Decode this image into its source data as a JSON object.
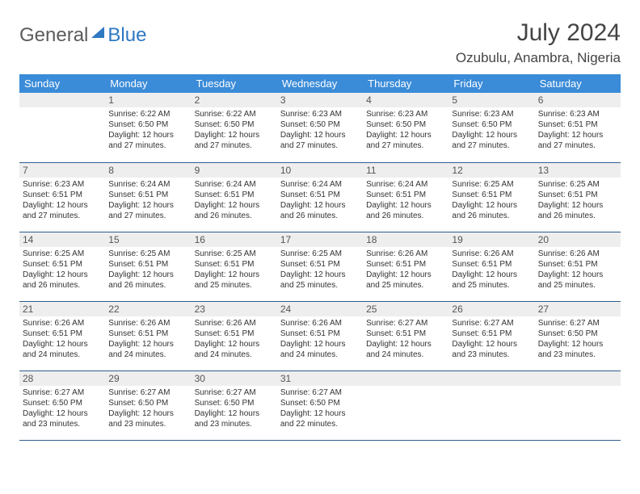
{
  "logo": {
    "part1": "General",
    "part2": "Blue"
  },
  "title": "July 2024",
  "location": "Ozubulu, Anambra, Nigeria",
  "colors": {
    "header_bg": "#3a8bd8",
    "header_text": "#ffffff",
    "daynum_bg": "#eeeeee",
    "row_border": "#2f5f8f",
    "logo_gray": "#5b5b5b",
    "logo_blue": "#2f78c2"
  },
  "weekdays": [
    "Sunday",
    "Monday",
    "Tuesday",
    "Wednesday",
    "Thursday",
    "Friday",
    "Saturday"
  ],
  "start_offset": 1,
  "days": [
    {
      "n": 1,
      "sunrise": "6:22 AM",
      "sunset": "6:50 PM",
      "daylight": "12 hours and 27 minutes."
    },
    {
      "n": 2,
      "sunrise": "6:22 AM",
      "sunset": "6:50 PM",
      "daylight": "12 hours and 27 minutes."
    },
    {
      "n": 3,
      "sunrise": "6:23 AM",
      "sunset": "6:50 PM",
      "daylight": "12 hours and 27 minutes."
    },
    {
      "n": 4,
      "sunrise": "6:23 AM",
      "sunset": "6:50 PM",
      "daylight": "12 hours and 27 minutes."
    },
    {
      "n": 5,
      "sunrise": "6:23 AM",
      "sunset": "6:50 PM",
      "daylight": "12 hours and 27 minutes."
    },
    {
      "n": 6,
      "sunrise": "6:23 AM",
      "sunset": "6:51 PM",
      "daylight": "12 hours and 27 minutes."
    },
    {
      "n": 7,
      "sunrise": "6:23 AM",
      "sunset": "6:51 PM",
      "daylight": "12 hours and 27 minutes."
    },
    {
      "n": 8,
      "sunrise": "6:24 AM",
      "sunset": "6:51 PM",
      "daylight": "12 hours and 27 minutes."
    },
    {
      "n": 9,
      "sunrise": "6:24 AM",
      "sunset": "6:51 PM",
      "daylight": "12 hours and 26 minutes."
    },
    {
      "n": 10,
      "sunrise": "6:24 AM",
      "sunset": "6:51 PM",
      "daylight": "12 hours and 26 minutes."
    },
    {
      "n": 11,
      "sunrise": "6:24 AM",
      "sunset": "6:51 PM",
      "daylight": "12 hours and 26 minutes."
    },
    {
      "n": 12,
      "sunrise": "6:25 AM",
      "sunset": "6:51 PM",
      "daylight": "12 hours and 26 minutes."
    },
    {
      "n": 13,
      "sunrise": "6:25 AM",
      "sunset": "6:51 PM",
      "daylight": "12 hours and 26 minutes."
    },
    {
      "n": 14,
      "sunrise": "6:25 AM",
      "sunset": "6:51 PM",
      "daylight": "12 hours and 26 minutes."
    },
    {
      "n": 15,
      "sunrise": "6:25 AM",
      "sunset": "6:51 PM",
      "daylight": "12 hours and 26 minutes."
    },
    {
      "n": 16,
      "sunrise": "6:25 AM",
      "sunset": "6:51 PM",
      "daylight": "12 hours and 25 minutes."
    },
    {
      "n": 17,
      "sunrise": "6:25 AM",
      "sunset": "6:51 PM",
      "daylight": "12 hours and 25 minutes."
    },
    {
      "n": 18,
      "sunrise": "6:26 AM",
      "sunset": "6:51 PM",
      "daylight": "12 hours and 25 minutes."
    },
    {
      "n": 19,
      "sunrise": "6:26 AM",
      "sunset": "6:51 PM",
      "daylight": "12 hours and 25 minutes."
    },
    {
      "n": 20,
      "sunrise": "6:26 AM",
      "sunset": "6:51 PM",
      "daylight": "12 hours and 25 minutes."
    },
    {
      "n": 21,
      "sunrise": "6:26 AM",
      "sunset": "6:51 PM",
      "daylight": "12 hours and 24 minutes."
    },
    {
      "n": 22,
      "sunrise": "6:26 AM",
      "sunset": "6:51 PM",
      "daylight": "12 hours and 24 minutes."
    },
    {
      "n": 23,
      "sunrise": "6:26 AM",
      "sunset": "6:51 PM",
      "daylight": "12 hours and 24 minutes."
    },
    {
      "n": 24,
      "sunrise": "6:26 AM",
      "sunset": "6:51 PM",
      "daylight": "12 hours and 24 minutes."
    },
    {
      "n": 25,
      "sunrise": "6:27 AM",
      "sunset": "6:51 PM",
      "daylight": "12 hours and 24 minutes."
    },
    {
      "n": 26,
      "sunrise": "6:27 AM",
      "sunset": "6:51 PM",
      "daylight": "12 hours and 23 minutes."
    },
    {
      "n": 27,
      "sunrise": "6:27 AM",
      "sunset": "6:50 PM",
      "daylight": "12 hours and 23 minutes."
    },
    {
      "n": 28,
      "sunrise": "6:27 AM",
      "sunset": "6:50 PM",
      "daylight": "12 hours and 23 minutes."
    },
    {
      "n": 29,
      "sunrise": "6:27 AM",
      "sunset": "6:50 PM",
      "daylight": "12 hours and 23 minutes."
    },
    {
      "n": 30,
      "sunrise": "6:27 AM",
      "sunset": "6:50 PM",
      "daylight": "12 hours and 23 minutes."
    },
    {
      "n": 31,
      "sunrise": "6:27 AM",
      "sunset": "6:50 PM",
      "daylight": "12 hours and 22 minutes."
    }
  ],
  "labels": {
    "sunrise": "Sunrise:",
    "sunset": "Sunset:",
    "daylight": "Daylight:"
  }
}
